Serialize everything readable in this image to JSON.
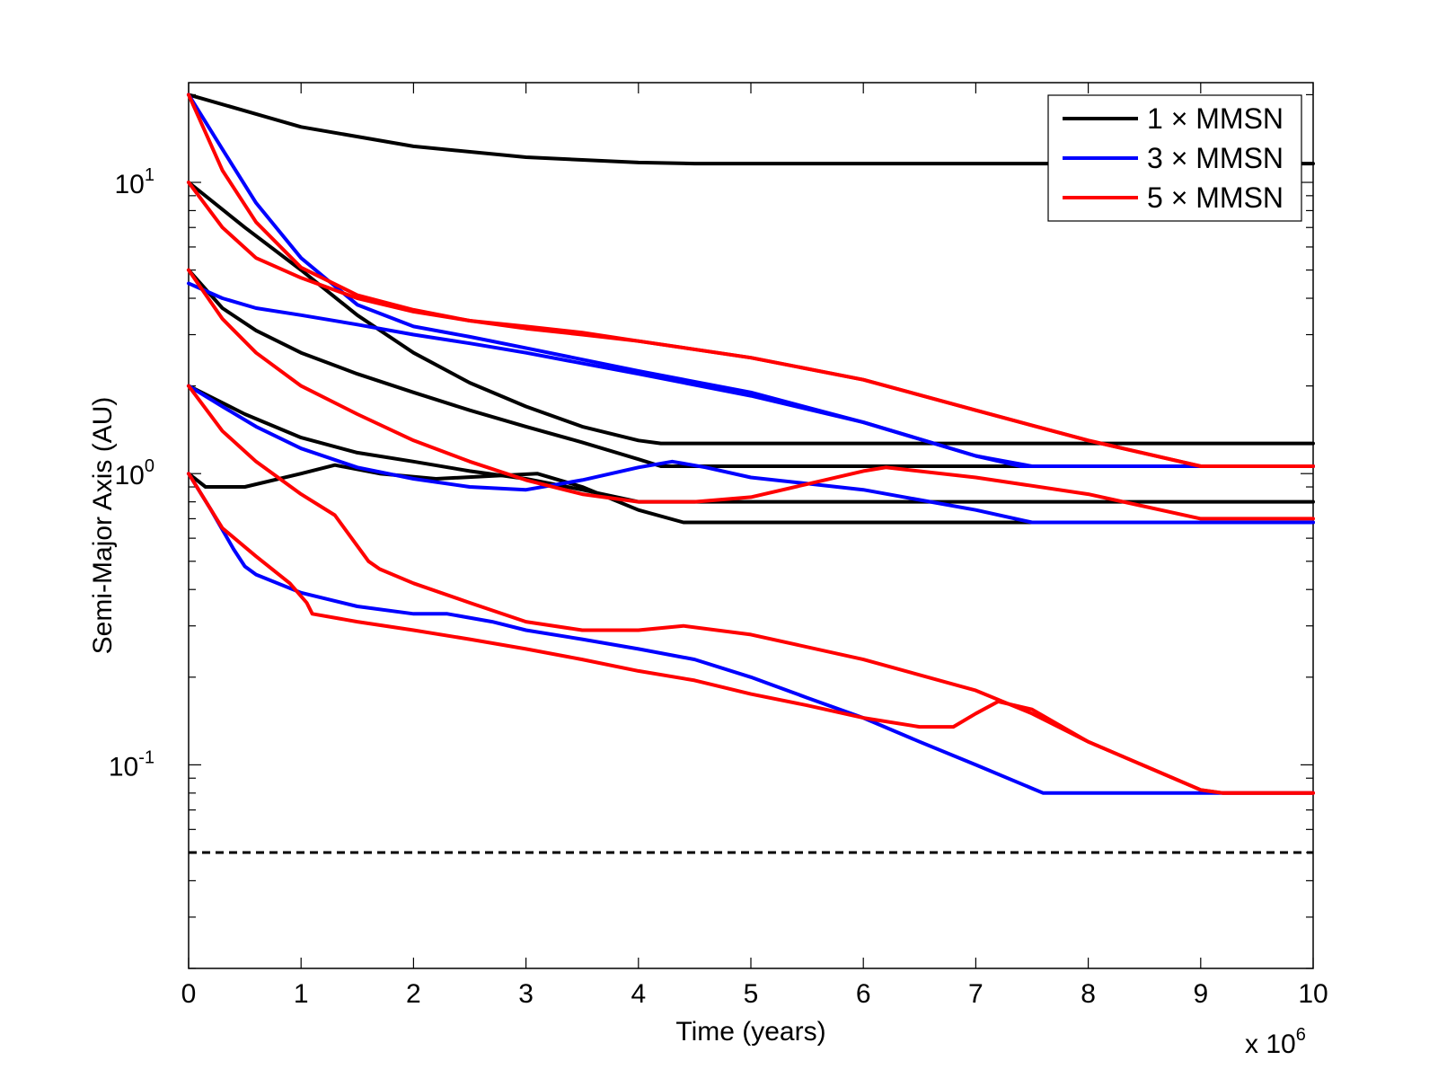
{
  "chart_data": {
    "type": "line",
    "title": "",
    "xlabel": "Time (years)",
    "ylabel": "Semi-Major Axis (AU)",
    "x_multiplier": {
      "base": "x 10",
      "exponent": "6"
    },
    "xlim": [
      0,
      10
    ],
    "ylim": [
      0.02,
      22
    ],
    "yscale": "log",
    "grid": false,
    "legend_position": "top-right",
    "x_ticks": [
      "0",
      "1",
      "2",
      "3",
      "4",
      "5",
      "6",
      "7",
      "8",
      "9",
      "10"
    ],
    "x_tick_values": [
      0,
      1,
      2,
      3,
      4,
      5,
      6,
      7,
      8,
      9,
      10
    ],
    "y_ticks": [
      {
        "value": 10,
        "base": "10",
        "exp": "1"
      },
      {
        "value": 1,
        "base": "10",
        "exp": "0"
      },
      {
        "value": 0.1,
        "base": "10",
        "exp": "-1"
      }
    ],
    "colors": {
      "black": "#000000",
      "blue": "#0000ff",
      "red": "#ff0000"
    },
    "legend": [
      {
        "label": "1 × MMSN",
        "color": "#000000"
      },
      {
        "label": "3 × MMSN",
        "color": "#0000ff"
      },
      {
        "label": "5 × MMSN",
        "color": "#ff0000"
      }
    ],
    "reference_line": {
      "y": 0.05,
      "style": "dashed",
      "color": "#000000"
    },
    "series": [
      {
        "color": "#000000",
        "x": [
          0,
          1,
          2,
          3,
          4,
          4.5,
          10
        ],
        "y": [
          20,
          15.5,
          13.3,
          12.2,
          11.7,
          11.6,
          11.6
        ]
      },
      {
        "color": "#000000",
        "x": [
          0,
          0.5,
          1,
          1.5,
          2,
          2.5,
          3,
          3.5,
          4,
          4.2,
          10
        ],
        "y": [
          10,
          7,
          5,
          3.5,
          2.6,
          2.05,
          1.7,
          1.45,
          1.3,
          1.27,
          1.27
        ]
      },
      {
        "color": "#000000",
        "x": [
          0,
          0.3,
          0.6,
          1,
          1.5,
          2,
          2.5,
          3,
          3.5,
          4,
          4.2,
          10
        ],
        "y": [
          5,
          3.7,
          3.1,
          2.6,
          2.2,
          1.9,
          1.65,
          1.45,
          1.28,
          1.12,
          1.06,
          1.06
        ]
      },
      {
        "color": "#000000",
        "x": [
          0,
          0.5,
          1,
          1.5,
          2,
          2.5,
          3,
          3.5,
          4,
          4.2,
          10
        ],
        "y": [
          2,
          1.6,
          1.33,
          1.18,
          1.1,
          1.02,
          0.96,
          0.88,
          0.8,
          0.8,
          0.8
        ]
      },
      {
        "color": "#000000",
        "x": [
          0,
          0.15,
          0.5,
          1,
          1.3,
          1.7,
          2.2,
          3.1,
          3.5,
          4,
          4.4,
          10
        ],
        "y": [
          1,
          0.9,
          0.9,
          1,
          1.07,
          1.0,
          0.96,
          1.0,
          0.9,
          0.75,
          0.68,
          0.68
        ]
      },
      {
        "color": "#0000ff",
        "x": [
          0,
          0.3,
          0.6,
          1,
          1.5,
          2,
          2.5,
          3,
          4,
          5,
          6,
          7,
          7.4,
          10
        ],
        "y": [
          20,
          13,
          8.5,
          5.5,
          3.8,
          3.2,
          2.95,
          2.7,
          2.25,
          1.9,
          1.5,
          1.15,
          1.06,
          1.06
        ]
      },
      {
        "color": "#0000ff",
        "x": [
          0,
          0.3,
          0.6,
          1,
          1.5,
          2,
          2.5,
          3,
          4,
          5,
          6,
          7,
          7.5,
          10
        ],
        "y": [
          4.5,
          4,
          3.7,
          3.5,
          3.25,
          3.0,
          2.8,
          2.6,
          2.2,
          1.85,
          1.5,
          1.15,
          1.06,
          1.06
        ]
      },
      {
        "color": "#0000ff",
        "x": [
          0,
          0.3,
          0.6,
          1,
          1.5,
          2,
          2.5,
          3,
          3.5,
          4,
          4.3,
          4.6,
          5,
          6,
          7,
          7.5,
          10
        ],
        "y": [
          2,
          1.7,
          1.45,
          1.22,
          1.05,
          0.96,
          0.9,
          0.88,
          0.95,
          1.05,
          1.1,
          1.05,
          0.97,
          0.88,
          0.75,
          0.68,
          0.68
        ]
      },
      {
        "color": "#0000ff",
        "x": [
          0,
          0.2,
          0.4,
          0.5,
          0.6,
          1,
          1.5,
          2,
          2.3,
          2.7,
          3,
          3.5,
          4,
          4.5,
          5,
          5.5,
          6,
          6.5,
          7,
          7.5,
          7.6,
          10
        ],
        "y": [
          1,
          0.75,
          0.55,
          0.48,
          0.45,
          0.39,
          0.35,
          0.33,
          0.33,
          0.31,
          0.29,
          0.27,
          0.25,
          0.23,
          0.2,
          0.17,
          0.145,
          0.12,
          0.1,
          0.083,
          0.08,
          0.08
        ]
      },
      {
        "color": "#ff0000",
        "x": [
          0,
          0.3,
          0.6,
          1,
          1.5,
          2,
          2.5,
          3,
          3.5,
          4,
          5,
          6,
          7,
          8,
          9,
          10
        ],
        "y": [
          20,
          11,
          7.3,
          5.1,
          4.1,
          3.65,
          3.35,
          3.15,
          3.0,
          2.85,
          2.5,
          2.1,
          1.65,
          1.3,
          1.06,
          1.06
        ]
      },
      {
        "color": "#ff0000",
        "x": [
          0,
          0.3,
          0.6,
          1,
          1.5,
          2,
          2.5,
          3,
          3.5,
          4,
          5,
          6,
          7,
          8,
          9,
          10
        ],
        "y": [
          10,
          7,
          5.5,
          4.7,
          4.0,
          3.6,
          3.35,
          3.2,
          3.05,
          2.85,
          2.5,
          2.1,
          1.65,
          1.3,
          1.06,
          1.06
        ]
      },
      {
        "color": "#ff0000",
        "x": [
          0,
          0.3,
          0.6,
          1,
          1.5,
          2,
          2.5,
          3,
          3.5,
          4,
          4.5,
          5,
          5.5,
          6,
          6.2,
          7,
          8,
          9,
          10
        ],
        "y": [
          5,
          3.4,
          2.6,
          2.0,
          1.6,
          1.3,
          1.1,
          0.95,
          0.85,
          0.8,
          0.8,
          0.83,
          0.92,
          1.02,
          1.05,
          0.97,
          0.85,
          0.7,
          0.7
        ]
      },
      {
        "color": "#ff0000",
        "x": [
          0,
          0.3,
          0.6,
          1,
          1.3,
          1.6,
          1.7,
          2,
          2.5,
          3,
          3.5,
          4,
          4.4,
          5,
          6,
          7,
          7.5,
          8,
          9,
          9.2,
          10
        ],
        "y": [
          2,
          1.4,
          1.1,
          0.85,
          0.72,
          0.5,
          0.47,
          0.42,
          0.36,
          0.31,
          0.29,
          0.29,
          0.3,
          0.28,
          0.23,
          0.18,
          0.15,
          0.12,
          0.082,
          0.08,
          0.08
        ]
      },
      {
        "color": "#ff0000",
        "x": [
          0,
          0.3,
          0.6,
          0.9,
          1.05,
          1.1,
          1.5,
          2,
          2.5,
          3,
          3.5,
          4,
          4.5,
          5,
          5.5,
          6,
          6.5,
          6.8,
          7.0,
          7.2,
          7.5,
          8,
          9,
          9.2,
          10
        ],
        "y": [
          1,
          0.65,
          0.52,
          0.42,
          0.36,
          0.33,
          0.31,
          0.29,
          0.27,
          0.25,
          0.23,
          0.21,
          0.195,
          0.175,
          0.16,
          0.145,
          0.135,
          0.135,
          0.15,
          0.165,
          0.155,
          0.12,
          0.082,
          0.08,
          0.08
        ]
      }
    ]
  }
}
